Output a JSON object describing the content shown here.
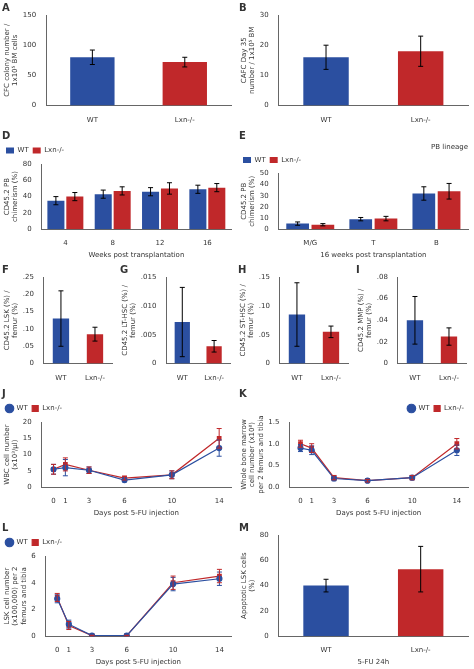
{
  "chart_data": [
    {
      "type": "bar",
      "title": "A",
      "categories": [
        "WT",
        "Lxn-/-"
      ],
      "values": [
        80,
        72
      ],
      "errors": [
        12,
        8
      ],
      "colors": [
        "#2b4fa0",
        "#c0282a"
      ],
      "ylabel": "CFC colony number /\n1x10⁵ BM cells",
      "ylim": [
        0,
        150
      ],
      "yticks": [
        0,
        50,
        100,
        150
      ],
      "grid": false
    },
    {
      "type": "bar",
      "title": "B",
      "categories": [
        "WT",
        "Lxn-/-"
      ],
      "values": [
        16,
        18
      ],
      "errors": [
        4,
        5
      ],
      "colors": [
        "#2b4fa0",
        "#c0282a"
      ],
      "ylabel": "CAFC Day 35\nnumber / 1x10⁵ BM",
      "ylim": [
        0,
        30
      ],
      "yticks": [
        0,
        10,
        20,
        30
      ],
      "grid": false
    },
    {
      "type": "bar",
      "title": "D",
      "categories": [
        "4",
        "8",
        "12",
        "16"
      ],
      "series": [
        {
          "name": "WT",
          "color": "#2b4fa0",
          "values": [
            35,
            43,
            46,
            49
          ],
          "errors": [
            5,
            5,
            5,
            5
          ]
        },
        {
          "name": "Lxn-/-",
          "color": "#c0282a",
          "values": [
            40,
            47,
            50,
            51
          ],
          "errors": [
            5,
            5,
            7,
            5
          ]
        }
      ],
      "xlabel": "Weeks post transplantation",
      "ylabel": "CD45.2 PB\nchimerism (%)",
      "ylim": [
        0,
        80
      ],
      "yticks": [
        0,
        20,
        40,
        60,
        80
      ],
      "legend": "upper left",
      "grid": false
    },
    {
      "type": "bar",
      "title": "E",
      "subtitle": "PB lineage",
      "categories": [
        "M/G",
        "T",
        "B"
      ],
      "series": [
        {
          "name": "WT",
          "color": "#2b4fa0",
          "values": [
            5,
            9,
            32
          ],
          "errors": [
            1.5,
            1.5,
            6
          ]
        },
        {
          "name": "Lxn-/-",
          "color": "#c0282a",
          "values": [
            4,
            9.5,
            34
          ],
          "errors": [
            1.0,
            2.0,
            7
          ]
        }
      ],
      "xlabel": "16 weeks post transplantation",
      "ylabel": "CD45.2 PB\nchimerism (%)",
      "ylim": [
        0,
        50
      ],
      "yticks": [
        0,
        10,
        20,
        30,
        40,
        50
      ],
      "legend": "upper left",
      "grid": false
    },
    {
      "type": "bar",
      "title": "F",
      "categories": [
        "WT",
        "Lxn-/-"
      ],
      "values": [
        0.13,
        0.085
      ],
      "errors": [
        0.08,
        0.02
      ],
      "colors": [
        "#2b4fa0",
        "#c0282a"
      ],
      "ylabel": "CD45.2 LSK (%) /\nfemur (%)",
      "ylim": [
        0,
        0.25
      ],
      "yticks": [
        0,
        {
          "value": 0.05,
          "label": ".05"
        },
        {
          "value": 0.1,
          "label": ".10"
        },
        {
          "value": 0.15,
          "label": ".15"
        },
        {
          "value": 0.2,
          "label": ".20"
        },
        {
          "value": 0.25,
          "label": ".25"
        }
      ],
      "grid": false
    },
    {
      "type": "bar",
      "title": "G",
      "categories": [
        "WT",
        "Lxn-/-"
      ],
      "values": [
        0.0072,
        0.003
      ],
      "errors": [
        0.006,
        0.001
      ],
      "colors": [
        "#2b4fa0",
        "#c0282a"
      ],
      "ylabel": "CD45.2 LT-HSC (%) /\nfemur (%)",
      "ylim": [
        0,
        0.015
      ],
      "yticks": [
        0,
        {
          "value": 0.005,
          "label": ".005"
        },
        {
          "value": 0.01,
          "label": ".010"
        },
        {
          "value": 0.015,
          "label": ".015"
        }
      ],
      "grid": false
    },
    {
      "type": "bar",
      "title": "H",
      "categories": [
        "WT",
        "Lxn-/-"
      ],
      "values": [
        0.085,
        0.055
      ],
      "errors": [
        0.055,
        0.01
      ],
      "colors": [
        "#2b4fa0",
        "#c0282a"
      ],
      "ylabel": "CD45.2 ST-HSC (%) /\nfemur (%)",
      "ylim": [
        0,
        0.15
      ],
      "yticks": [
        0,
        {
          "value": 0.05,
          "label": ".05"
        },
        {
          "value": 0.1,
          "label": ".10"
        },
        {
          "value": 0.15,
          "label": ".15"
        }
      ],
      "grid": false
    },
    {
      "type": "bar",
      "title": "I",
      "categories": [
        "WT",
        "Lxn-/-"
      ],
      "values": [
        0.04,
        0.025
      ],
      "errors": [
        0.022,
        0.008
      ],
      "colors": [
        "#2b4fa0",
        "#c0282a"
      ],
      "ylabel": "CD45.2 MMP (%) /\nfemur (%)",
      "ylim": [
        0,
        0.08
      ],
      "yticks": [
        0,
        {
          "value": 0.02,
          "label": ".02"
        },
        {
          "value": 0.04,
          "label": ".04"
        },
        {
          "value": 0.06,
          "label": ".06"
        },
        {
          "value": 0.08,
          "label": ".08"
        }
      ],
      "grid": false
    },
    {
      "type": "line",
      "title": "J",
      "x": [
        0,
        1,
        3,
        6,
        10,
        14
      ],
      "series": [
        {
          "name": "WT",
          "color": "#2b4fa0",
          "marker": "circle",
          "values": [
            5.5,
            6.0,
            5.2,
            2.2,
            3.8,
            12.0
          ],
          "errors": [
            1.5,
            2.5,
            1.0,
            0.6,
            1.2,
            2.5
          ]
        },
        {
          "name": "Lxn-/-",
          "color": "#c0282a",
          "marker": "square",
          "values": [
            5.5,
            7.0,
            5.2,
            2.8,
            3.8,
            15.0
          ],
          "errors": [
            1.5,
            2.0,
            1.0,
            0.6,
            1.2,
            3.0
          ]
        }
      ],
      "xlabel": "Days post 5-FU injection",
      "ylabel": "WBC cell number\n(x10³/µl)",
      "xlim": [
        -1,
        15
      ],
      "xticks": [
        0,
        1,
        3,
        6,
        10,
        14
      ],
      "ylim": [
        0,
        20
      ],
      "yticks": [
        0,
        5,
        10,
        15,
        20
      ],
      "legend": "upper left",
      "grid": false
    },
    {
      "type": "line",
      "title": "K",
      "x": [
        0,
        1,
        3,
        6,
        10,
        14
      ],
      "series": [
        {
          "name": "WT",
          "color": "#2b4fa0",
          "marker": "circle",
          "values": [
            0.9,
            0.85,
            0.2,
            0.15,
            0.22,
            0.85
          ],
          "errors": [
            0.08,
            0.1,
            0.05,
            0.03,
            0.05,
            0.12
          ]
        },
        {
          "name": "Lxn-/-",
          "color": "#c0282a",
          "marker": "square",
          "values": [
            1.0,
            0.9,
            0.22,
            0.15,
            0.22,
            1.0
          ],
          "errors": [
            0.08,
            0.1,
            0.05,
            0.03,
            0.05,
            0.12
          ]
        }
      ],
      "xlabel": "Days post 5-FU injection",
      "ylabel": "Whole bone marrow\ncell number (x10⁸)\nper 2 femurs and tibia",
      "xlim": [
        -1,
        15
      ],
      "xticks": [
        0,
        1,
        3,
        6,
        10,
        14
      ],
      "ylim": [
        0,
        1.5
      ],
      "yticks": [
        {
          "value": 0,
          "label": "0.0"
        },
        0.5,
        {
          "value": 1.0,
          "label": "1.0"
        },
        1.5
      ],
      "legend": "upper right",
      "grid": false
    },
    {
      "type": "line",
      "title": "L",
      "x": [
        0,
        1,
        3,
        6,
        10,
        14
      ],
      "series": [
        {
          "name": "WT",
          "color": "#2b4fa0",
          "marker": "circle",
          "values": [
            2.8,
            0.9,
            0.05,
            0.05,
            3.9,
            4.3
          ],
          "errors": [
            0.3,
            0.3,
            0.02,
            0.02,
            0.5,
            0.5
          ]
        },
        {
          "name": "Lxn-/-",
          "color": "#c0282a",
          "marker": "square",
          "values": [
            2.9,
            0.8,
            0.05,
            0.05,
            4.0,
            4.5
          ],
          "errors": [
            0.3,
            0.3,
            0.02,
            0.02,
            0.5,
            0.5
          ]
        }
      ],
      "xlabel": "Days post 5-FU injection",
      "ylabel": "LSK cell number\n(x100,000) per 2\nfemurs and tibia",
      "xlim": [
        -1,
        15
      ],
      "xticks": [
        0,
        1,
        3,
        6,
        10,
        14
      ],
      "ylim": [
        0,
        6
      ],
      "yticks": [
        0,
        2,
        4,
        6
      ],
      "legend": "upper left",
      "grid": false
    },
    {
      "type": "bar",
      "title": "M",
      "categories": [
        "WT",
        "Lxn-/-"
      ],
      "values": [
        40,
        53
      ],
      "errors": [
        5,
        18
      ],
      "colors": [
        "#2b4fa0",
        "#c0282a"
      ],
      "xlabel": "5-FU 24h",
      "ylabel": "Apoptotic LSK cells\n(%)",
      "ylim": [
        0,
        80
      ],
      "yticks": [
        0,
        20,
        40,
        60,
        80
      ],
      "grid": false
    }
  ]
}
